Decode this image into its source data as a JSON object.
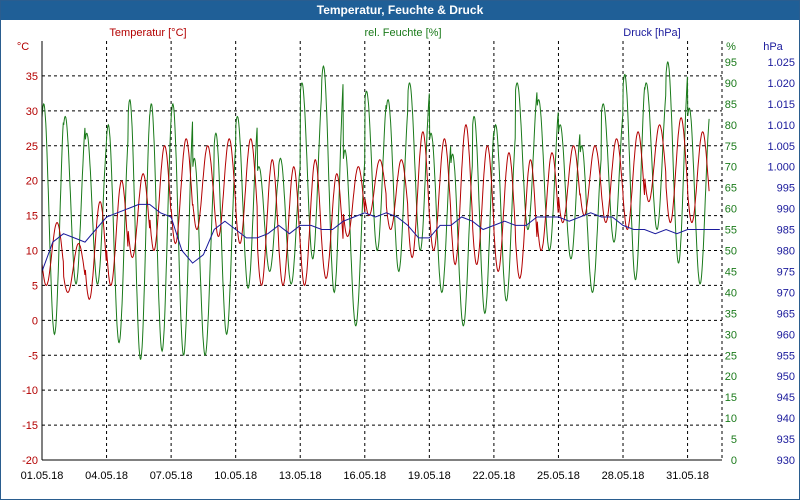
{
  "title": "Temperatur, Feuchte & Druck",
  "colors": {
    "title_bar": "#1f5f97",
    "temperature": "#b30000",
    "humidity": "#1a7a1a",
    "pressure": "#1a1a9c",
    "grid": "#000000"
  },
  "chart_data": {
    "type": "line",
    "title": "Temperatur, Feuchte & Druck",
    "x_ticks": [
      "01.05.18",
      "04.05.18",
      "07.05.18",
      "10.05.18",
      "13.05.18",
      "16.05.18",
      "19.05.18",
      "22.05.18",
      "25.05.18",
      "28.05.18",
      "31.05.18"
    ],
    "x_range_days": [
      0,
      31.6
    ],
    "axes": {
      "temperature": {
        "label": "Temperatur [°C]",
        "unit": "°C",
        "range": [
          -20,
          40
        ],
        "ticks": [
          "35",
          "30",
          "25",
          "20",
          "15",
          "10",
          "5",
          "0",
          "-5",
          "-10",
          "-15",
          "-20"
        ]
      },
      "humidity": {
        "label": "rel. Feuchte [%]",
        "unit": "%",
        "range": [
          0,
          100
        ],
        "ticks": [
          "95",
          "90",
          "85",
          "80",
          "75",
          "70",
          "65",
          "60",
          "55",
          "50",
          "45",
          "40",
          "35",
          "30",
          "25",
          "20",
          "15",
          "10",
          "5",
          "0"
        ]
      },
      "pressure": {
        "label": "Druck [hPa]",
        "unit": "hPa",
        "range": [
          930,
          1030
        ],
        "ticks": [
          "1.025",
          "1.020",
          "1.015",
          "1.010",
          "1.005",
          "1.000",
          "995",
          "990",
          "985",
          "980",
          "975",
          "970",
          "965",
          "960",
          "955",
          "950",
          "945",
          "940",
          "935",
          "930"
        ]
      }
    },
    "series": [
      {
        "name": "Temperatur",
        "axis": "temperature",
        "daily_points": true,
        "daily_min": [
          5,
          4,
          3,
          5,
          9,
          10,
          11,
          13,
          12,
          11,
          5,
          5,
          5,
          6,
          12,
          15,
          13,
          9,
          10,
          8,
          8,
          7,
          6,
          10,
          14,
          15,
          14,
          13,
          17,
          14,
          14
        ],
        "daily_max": [
          14,
          11,
          17,
          20,
          21,
          25,
          26,
          25,
          26,
          26,
          23,
          22,
          23,
          21,
          22,
          23,
          23,
          27,
          26,
          28,
          25,
          24,
          23,
          24,
          25,
          25,
          26,
          27,
          28,
          29,
          27
        ]
      },
      {
        "name": "rel. Feuchte",
        "axis": "humidity",
        "daily_points": true,
        "daily_min": [
          30,
          42,
          42,
          28,
          24,
          26,
          25,
          25,
          30,
          41,
          45,
          42,
          48,
          40,
          32,
          50,
          45,
          50,
          40,
          32,
          35,
          38,
          55,
          50,
          48,
          40,
          52,
          43,
          55,
          47,
          42
        ],
        "daily_max": [
          85,
          82,
          78,
          80,
          86,
          85,
          85,
          72,
          78,
          82,
          70,
          72,
          90,
          94,
          74,
          88,
          86,
          90,
          78,
          73,
          82,
          80,
          90,
          86,
          80,
          75,
          85,
          92,
          90,
          95,
          84
        ]
      },
      {
        "name": "Druck",
        "axis": "pressure",
        "x": [
          0,
          0.5,
          1,
          1.5,
          2,
          2.5,
          3,
          3.5,
          4,
          4.5,
          5,
          5.5,
          6,
          6.5,
          7,
          7.5,
          8,
          8.5,
          9,
          9.5,
          10,
          10.5,
          11,
          11.5,
          12,
          12.5,
          13,
          13.5,
          14,
          14.5,
          15,
          15.5,
          16,
          16.5,
          17,
          17.5,
          18,
          18.5,
          19,
          19.5,
          20,
          20.5,
          21,
          21.5,
          22,
          22.5,
          23,
          23.5,
          24,
          24.5,
          25,
          25.5,
          26,
          26.5,
          27,
          27.5,
          28,
          28.5,
          29,
          29.5,
          30,
          30.5,
          31,
          31.5
        ],
        "values": [
          975,
          982,
          984,
          983,
          982,
          985,
          988,
          989,
          990,
          991,
          991,
          989,
          988,
          980,
          977,
          979,
          985,
          987,
          985,
          983,
          983,
          984,
          986,
          984,
          986,
          986,
          985,
          985,
          987,
          988,
          989,
          988,
          989,
          988,
          986,
          983,
          983,
          986,
          986,
          988,
          987,
          985,
          986,
          987,
          986,
          986,
          988,
          988,
          988,
          987,
          988,
          989,
          988,
          988,
          986,
          985,
          985,
          984,
          985,
          984,
          985,
          985,
          985,
          985
        ]
      }
    ]
  }
}
